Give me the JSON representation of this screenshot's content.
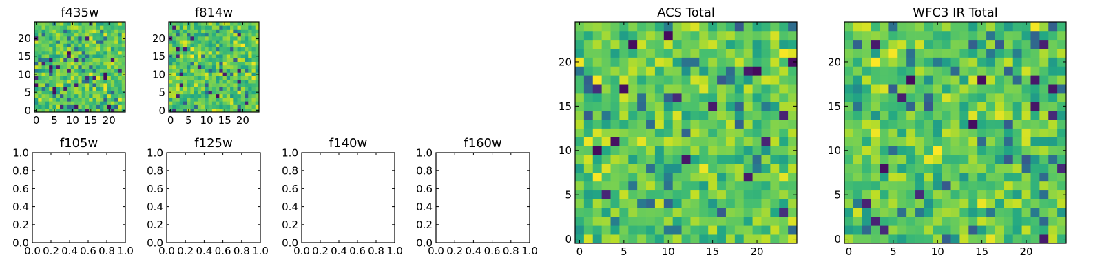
{
  "figure": {
    "panels": [
      {
        "id": "f435w",
        "title": "f435w",
        "kind": "heatmap"
      },
      {
        "id": "f814w",
        "title": "f814w",
        "kind": "heatmap"
      },
      {
        "id": "f105w",
        "title": "f105w",
        "kind": "empty"
      },
      {
        "id": "f125w",
        "title": "f125w",
        "kind": "empty"
      },
      {
        "id": "f140w",
        "title": "f140w",
        "kind": "empty"
      },
      {
        "id": "f160w",
        "title": "f160w",
        "kind": "empty"
      },
      {
        "id": "acs-total",
        "title": "ACS Total",
        "kind": "heatmap"
      },
      {
        "id": "wfc3-ir-total",
        "title": "WFC3 IR Total",
        "kind": "heatmap"
      }
    ]
  },
  "chart_data": [
    {
      "type": "heatmap",
      "title": "f435w",
      "grid_size": [
        25,
        25
      ],
      "xlim": [
        -0.5,
        24.5
      ],
      "ylim": [
        -0.5,
        24.5
      ],
      "xticks": [
        "0",
        "5",
        "10",
        "15",
        "20"
      ],
      "yticks": [
        "0",
        "5",
        "10",
        "15",
        "20"
      ],
      "colormap": "viridis",
      "seed": 435
    },
    {
      "type": "heatmap",
      "title": "f814w",
      "grid_size": [
        25,
        25
      ],
      "xlim": [
        -0.5,
        24.5
      ],
      "ylim": [
        -0.5,
        24.5
      ],
      "xticks": [
        "0",
        "5",
        "10",
        "15",
        "20"
      ],
      "yticks": [
        "0",
        "5",
        "10",
        "15",
        "20"
      ],
      "colormap": "viridis",
      "seed": 814
    },
    {
      "type": "empty",
      "title": "f105w",
      "xlim": [
        0,
        1
      ],
      "ylim": [
        0,
        1
      ],
      "xticks": [
        "0.0",
        "0.2",
        "0.4",
        "0.6",
        "0.8",
        "1.0"
      ],
      "yticks": [
        "0.0",
        "0.2",
        "0.4",
        "0.6",
        "0.8",
        "1.0"
      ]
    },
    {
      "type": "empty",
      "title": "f125w",
      "xlim": [
        0,
        1
      ],
      "ylim": [
        0,
        1
      ],
      "xticks": [
        "0.0",
        "0.2",
        "0.4",
        "0.6",
        "0.8",
        "1.0"
      ],
      "yticks": [
        "0.0",
        "0.2",
        "0.4",
        "0.6",
        "0.8",
        "1.0"
      ]
    },
    {
      "type": "empty",
      "title": "f140w",
      "xlim": [
        0,
        1
      ],
      "ylim": [
        0,
        1
      ],
      "xticks": [
        "0.0",
        "0.2",
        "0.4",
        "0.6",
        "0.8",
        "1.0"
      ],
      "yticks": [
        "0.0",
        "0.2",
        "0.4",
        "0.6",
        "0.8",
        "1.0"
      ]
    },
    {
      "type": "empty",
      "title": "f160w",
      "xlim": [
        0,
        1
      ],
      "ylim": [
        0,
        1
      ],
      "xticks": [
        "0.0",
        "0.2",
        "0.4",
        "0.6",
        "0.8",
        "1.0"
      ],
      "yticks": [
        "0.0",
        "0.2",
        "0.4",
        "0.6",
        "0.8",
        "1.0"
      ]
    },
    {
      "type": "heatmap",
      "title": "ACS Total",
      "grid_size": [
        25,
        25
      ],
      "xlim": [
        -0.5,
        24.5
      ],
      "ylim": [
        -0.5,
        24.5
      ],
      "xticks": [
        "0",
        "5",
        "10",
        "15",
        "20"
      ],
      "yticks": [
        "0",
        "5",
        "10",
        "15",
        "20"
      ],
      "colormap": "viridis",
      "seed": 1001
    },
    {
      "type": "heatmap",
      "title": "WFC3 IR Total",
      "grid_size": [
        25,
        25
      ],
      "xlim": [
        -0.5,
        24.5
      ],
      "ylim": [
        -0.5,
        24.5
      ],
      "xticks": [
        "0",
        "5",
        "10",
        "15",
        "20"
      ],
      "yticks": [
        "0",
        "5",
        "10",
        "15",
        "20"
      ],
      "colormap": "viridis",
      "seed": 2002
    }
  ]
}
